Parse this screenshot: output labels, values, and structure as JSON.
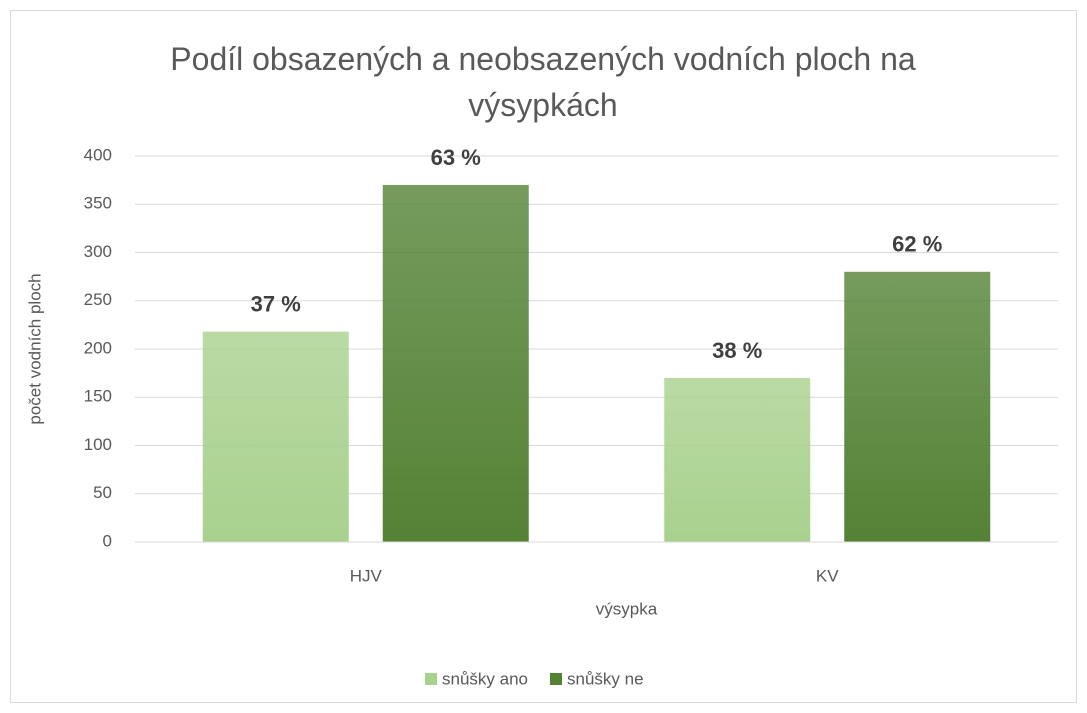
{
  "chart_data": {
    "type": "bar",
    "title": "Podíl obsazených a neobsazených vodních ploch na výsypkách",
    "xlabel": "výsypka",
    "ylabel": "počet vodních ploch",
    "categories": [
      "HJV",
      "KV"
    ],
    "series": [
      {
        "name": "snůšky ano",
        "color": "#a9d18e",
        "values": [
          218,
          170
        ],
        "value_labels": [
          "37 %",
          "38 %"
        ]
      },
      {
        "name": "snůšky ne",
        "color": "#548235",
        "values": [
          370,
          280
        ],
        "value_labels": [
          "63 %",
          "62 %"
        ]
      }
    ],
    "ylim": [
      0,
      400
    ],
    "yticks": [
      0,
      50,
      100,
      150,
      200,
      250,
      300,
      350,
      400
    ],
    "grid": true,
    "legend": "bottom"
  }
}
